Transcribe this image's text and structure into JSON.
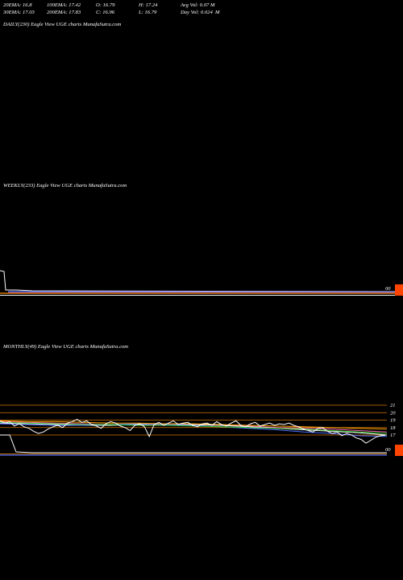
{
  "stats": {
    "row1": [
      "20EMA: 16.8",
      "100EMA: 17.42",
      "O: 16.79",
      "H: 17.24",
      "Avg Vol: 0.07 M"
    ],
    "row2": [
      "30EMA: 17.03",
      "200EMA: 17.83",
      "C: 16.96",
      "L: 16.79",
      "Day Vol: 0.024  M"
    ]
  },
  "panels": {
    "daily_label": "DAILY(230) Eagle   View  UGE charts MunafaSutra.com",
    "weekly_label": "WEEKLY(233) Eagle   View  UGE charts MunafaSutra.com",
    "monthly_label": "MONTHLY(49) Eagle   View  UGE charts MunafaSutra.com"
  },
  "weekly_end_label": "00",
  "monthly_end_label": "00",
  "chart_data": {
    "type": "line",
    "monthly_y_ticks": [
      21,
      20,
      19,
      18,
      17
    ],
    "monthly_price": [
      18.9,
      18.6,
      18.8,
      18.2,
      18.5,
      18.1,
      17.9,
      17.5,
      17.2,
      17.4,
      17.8,
      18.1,
      18.3,
      18.0,
      18.6,
      18.8,
      19.1,
      18.7,
      18.9,
      18.4,
      18.2,
      17.9,
      18.5,
      18.8,
      18.6,
      18.2,
      18.0,
      17.6,
      18.3,
      18.5,
      18.1,
      16.8,
      18.4,
      18.7,
      18.3,
      18.6,
      18.9,
      18.4,
      18.6,
      18.7,
      18.3,
      18.1,
      18.5,
      18.6,
      18.3,
      18.8,
      18.4,
      18.2,
      18.6,
      18.9,
      18.3,
      18.1,
      18.5,
      18.7,
      18.2,
      18.4,
      18.6,
      18.3,
      18.5,
      18.4,
      18.6,
      18.3,
      18.1,
      17.8,
      17.6,
      17.4,
      17.9,
      18.0,
      17.5,
      17.2,
      17.4,
      16.9,
      17.2,
      17.0,
      16.6,
      16.4,
      15.9,
      16.3,
      16.7,
      16.9,
      16.96
    ],
    "monthly_ema_series": [
      {
        "color": "#ff69b4",
        "values": [
          18.8,
          18.7,
          18.6,
          18.5,
          18.4,
          18.4,
          18.4,
          18.4,
          18.3,
          18.2,
          18.0,
          17.9,
          17.8,
          17.6,
          17.4
        ]
      },
      {
        "color": "#ffffff",
        "values": [
          18.6,
          18.5,
          18.4,
          18.3,
          18.3,
          18.4,
          18.5,
          18.4,
          18.3,
          18.1,
          17.9,
          17.7,
          17.5,
          17.3,
          17.0
        ]
      },
      {
        "color": "#4d6cff",
        "values": [
          18.5,
          18.4,
          18.3,
          18.3,
          18.4,
          18.5,
          18.4,
          18.3,
          18.1,
          17.9,
          17.7,
          17.4,
          17.2,
          16.9,
          16.8
        ]
      },
      {
        "color": "#ffa500",
        "values": [
          18.9,
          18.8,
          18.8,
          18.7,
          18.6,
          18.6,
          18.5,
          18.5,
          18.4,
          18.3,
          18.2,
          18.1,
          18.0,
          17.9,
          17.8
        ]
      },
      {
        "color": "#32cd32",
        "values": [
          18.7,
          18.6,
          18.5,
          18.4,
          18.4,
          18.3,
          18.3,
          18.2,
          18.1,
          18.0,
          17.9,
          17.8,
          17.6,
          17.4,
          17.2
        ]
      }
    ],
    "monthly_volume": [
      14.6,
      14.6,
      14.6,
      14.6,
      14.6,
      14.6,
      14.6,
      14.6,
      14.6,
      14.6
    ],
    "weekly_flat_level": 0
  }
}
